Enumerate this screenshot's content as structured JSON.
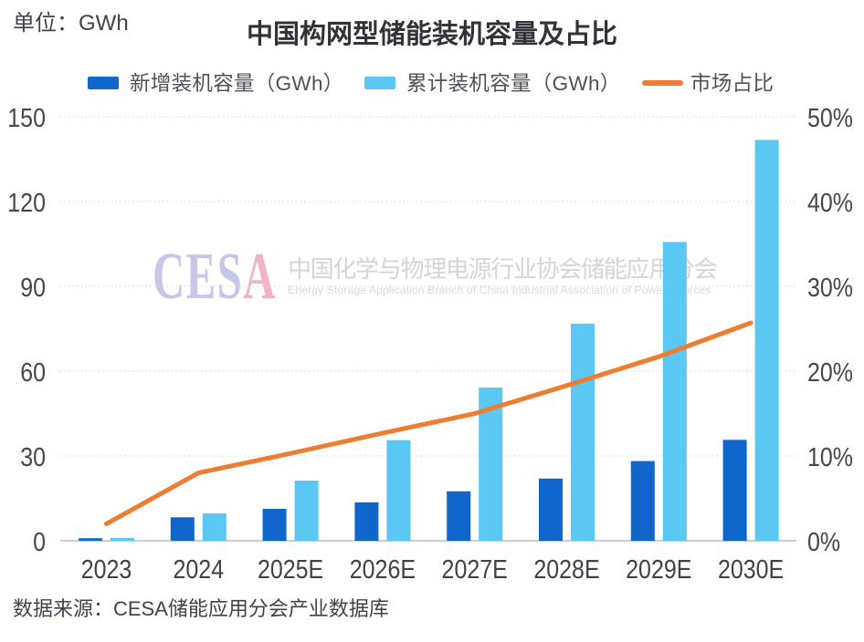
{
  "unit_label": "单位：GWh",
  "title": "中国构网型储能装机容量及占比",
  "legend": [
    {
      "label": "新增装机容量（GWh）",
      "color": "#1166cb",
      "type": "rect"
    },
    {
      "label": "累计装机容量（GWh）",
      "color": "#5ac8f2",
      "type": "rect"
    },
    {
      "label": "市场占比",
      "color": "#ed7d31",
      "type": "line"
    }
  ],
  "watermark": {
    "logo_left": "CES",
    "logo_right": "A",
    "logo_left_color": "#c5c8ea",
    "logo_right_color": "#f3b3c9",
    "cn": "中国化学与物理电源行业协会储能应用分会",
    "en": "Energy Storage Application Branch of China Industrial Association of Power Sources"
  },
  "source_note": "数据来源：CESA储能应用分会产业数据库",
  "chart_data": {
    "type": "bar",
    "categories": [
      "2023",
      "2024",
      "2025E",
      "2026E",
      "2027E",
      "2028E",
      "2029E",
      "2030E"
    ],
    "series": [
      {
        "name": "新增装机容量（GWh）",
        "type": "bar",
        "axis": "left",
        "color": "#1166cb",
        "values": [
          0.9,
          8.3,
          11.3,
          13.6,
          17.5,
          22.0,
          28.2,
          35.7
        ]
      },
      {
        "name": "累计装机容量（GWh）",
        "type": "bar",
        "axis": "left",
        "color": "#5ac8f2",
        "values": [
          1.0,
          9.7,
          21.3,
          35.6,
          54.2,
          76.8,
          105.7,
          141.8
        ]
      },
      {
        "name": "市场占比",
        "type": "line",
        "axis": "right",
        "color": "#ed7d31",
        "unit": "%",
        "values": [
          2.0,
          8.0,
          10.3,
          12.7,
          15.0,
          18.3,
          21.7,
          25.7
        ]
      }
    ],
    "left_axis": {
      "title": "GWh",
      "ticks": [
        0,
        30,
        60,
        90,
        120,
        150
      ],
      "min": 0,
      "max": 150
    },
    "right_axis": {
      "ticks": [
        "0%",
        "10%",
        "20%",
        "30%",
        "40%",
        "50%"
      ],
      "min": 0,
      "max": 50
    },
    "grid": "dotted horizontal",
    "legend_position": "top"
  }
}
